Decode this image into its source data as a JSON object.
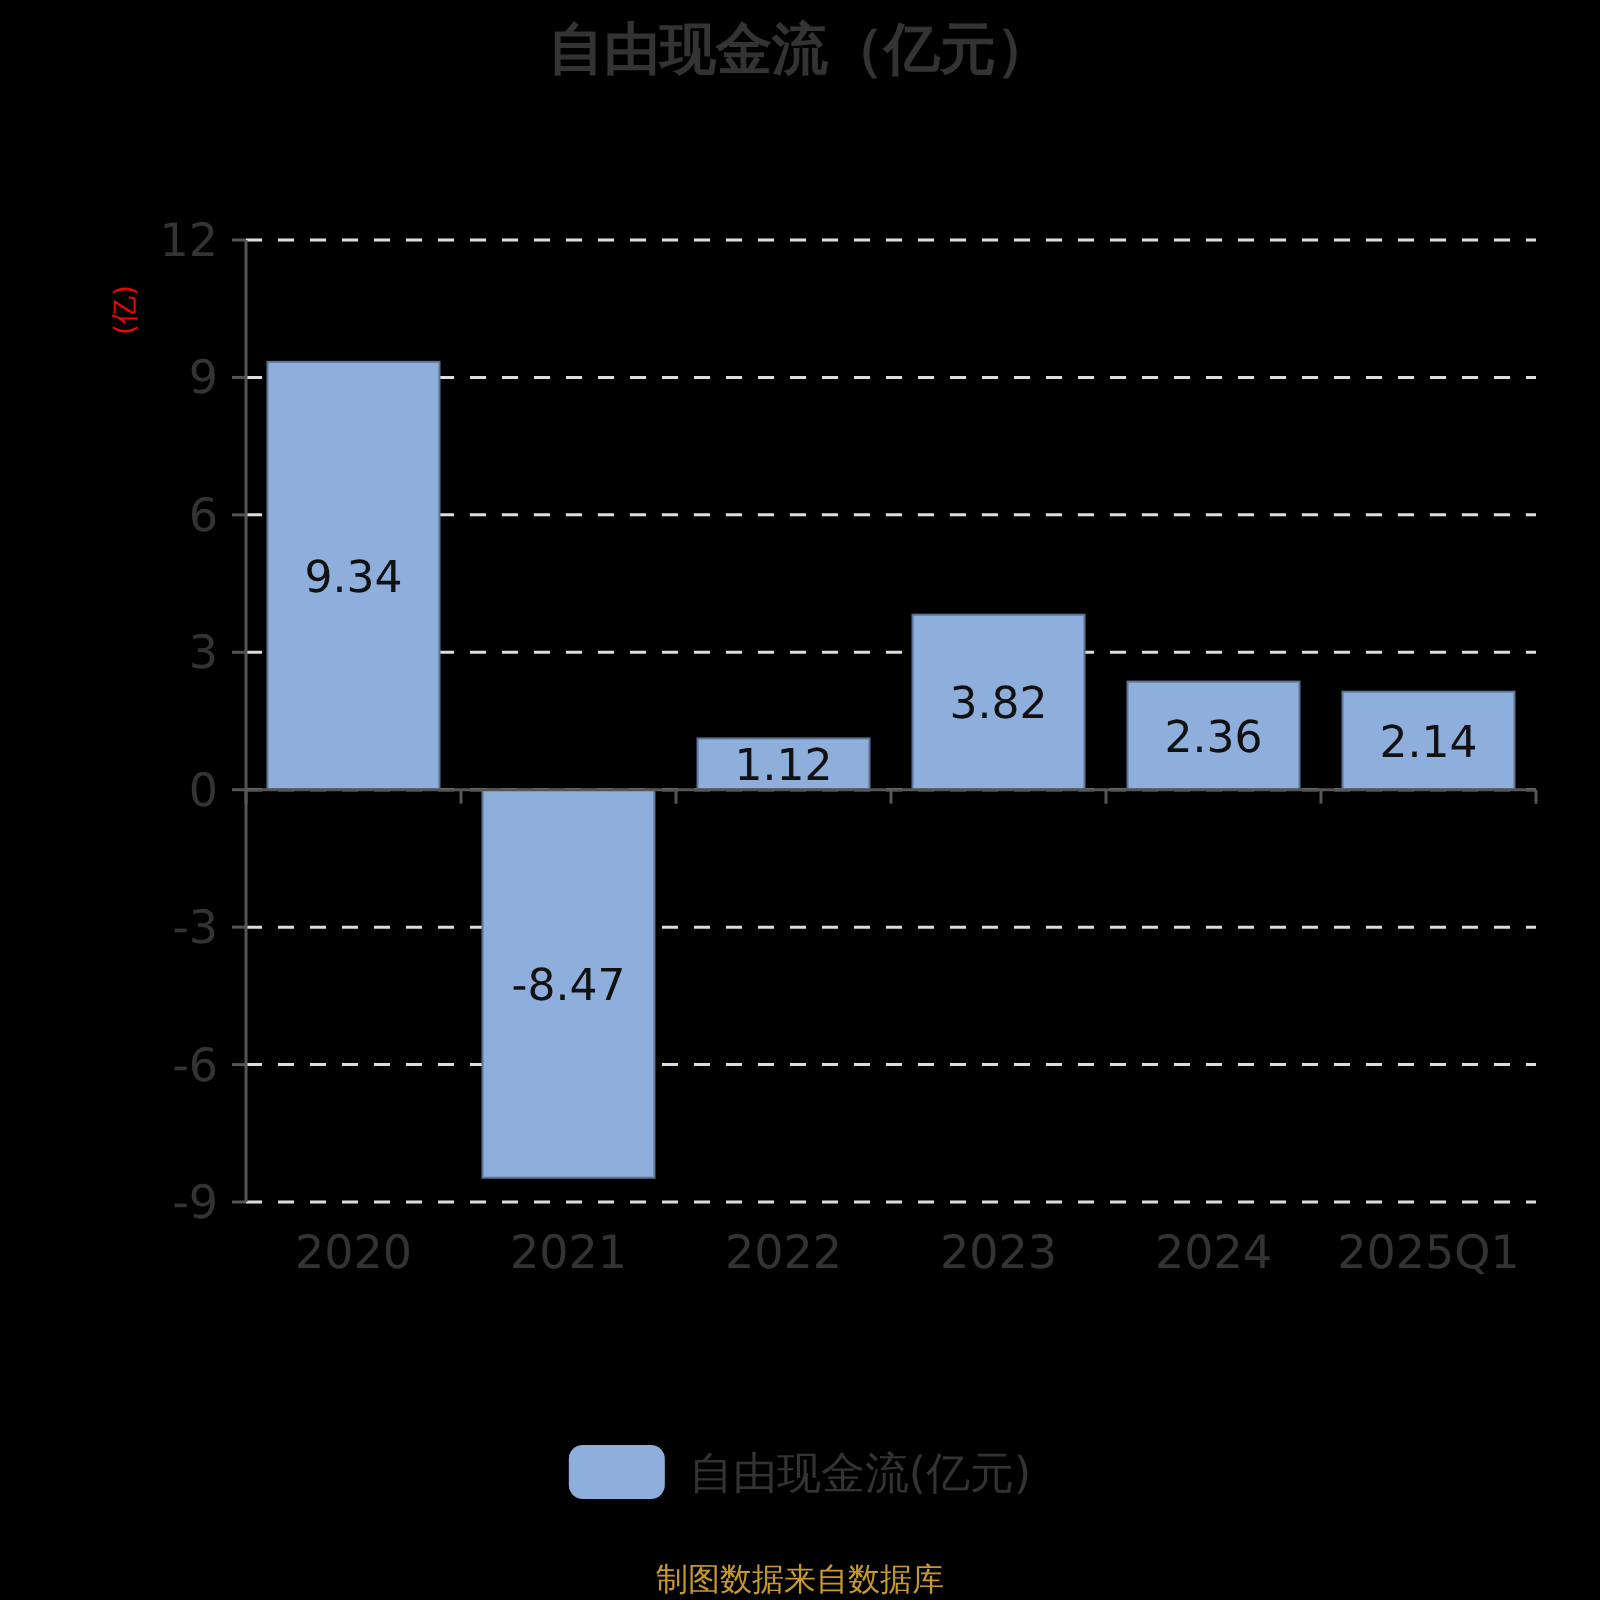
{
  "chart_data": {
    "type": "bar",
    "title": "自由现金流（亿元）",
    "ylabel": "(亿)",
    "categories": [
      "2020",
      "2021",
      "2022",
      "2023",
      "2024",
      "2025Q1"
    ],
    "series": [
      {
        "name": "自由现金流(亿元)",
        "color": "#8eaedc",
        "values": [
          9.34,
          -8.47,
          1.12,
          3.82,
          2.36,
          2.14
        ]
      }
    ],
    "ylim": [
      -9,
      12
    ],
    "yticks": [
      -9,
      -6,
      -3,
      0,
      3,
      6,
      9,
      12
    ],
    "grid": "y",
    "legend": "bottom",
    "data_labels": true,
    "annotations": [
      "制图数据来自数据库"
    ]
  }
}
